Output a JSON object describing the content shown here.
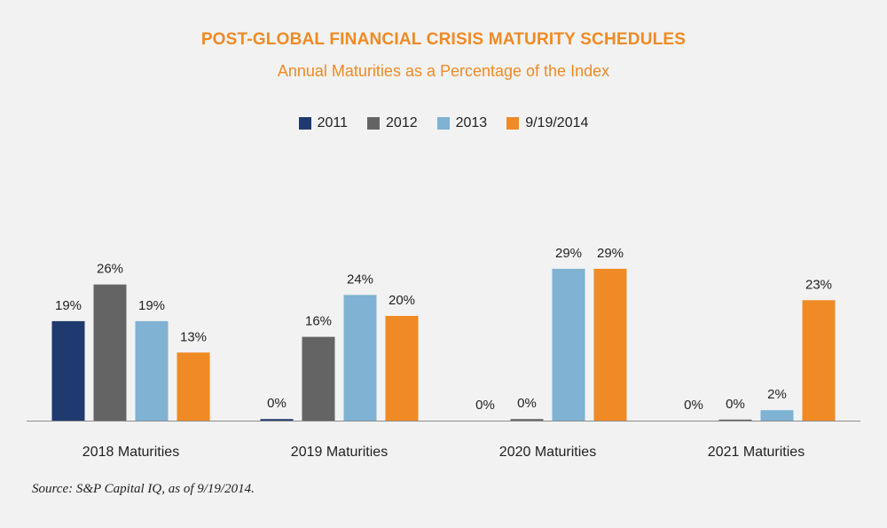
{
  "chart_data": {
    "type": "bar",
    "title": "POST-GLOBAL FINANCIAL CRISIS MATURITY SCHEDULES",
    "subtitle": "Annual Maturities as a Percentage of the Index",
    "categories": [
      "2018 Maturities",
      "2019 Maturities",
      "2020 Maturities",
      "2021 Maturities"
    ],
    "series": [
      {
        "name": "2011",
        "color": "#1f3a6e",
        "values": [
          19,
          0.3,
          0,
          0
        ],
        "labels": [
          "19%",
          "0%",
          "0%",
          "0%"
        ]
      },
      {
        "name": "2012",
        "color": "#646464",
        "values": [
          26,
          16,
          0.3,
          0.2
        ],
        "labels": [
          "26%",
          "16%",
          "0%",
          "0%"
        ]
      },
      {
        "name": "2013",
        "color": "#7fb2d3",
        "values": [
          19,
          24,
          29,
          2
        ],
        "labels": [
          "19%",
          "24%",
          "29%",
          "2%"
        ]
      },
      {
        "name": "9/19/2014",
        "color": "#f08a24",
        "values": [
          13,
          20,
          29,
          23
        ],
        "labels": [
          "13%",
          "20%",
          "29%",
          "23%"
        ]
      }
    ],
    "ylim": [
      0,
      30
    ],
    "grid": false,
    "legend_position": "top-center"
  },
  "source": "Source: S&P Capital IQ, as of 9/19/2014."
}
